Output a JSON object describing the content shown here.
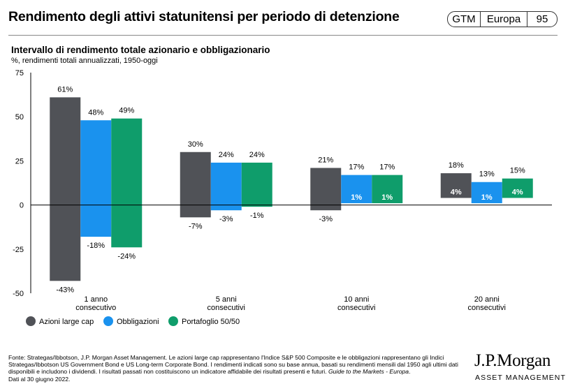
{
  "header": {
    "title": "Rendimento degli attivi statunitensi per periodo di detenzione",
    "badge": {
      "left": "GTM",
      "middle": "Europa",
      "right": "95"
    }
  },
  "chart_data": {
    "type": "bar",
    "title": "Intervallo di rendimento totale azionario e obbligazionario",
    "subtitle": "%, rendimenti totali annualizzati, 1950-oggi",
    "ylim": [
      -50,
      75
    ],
    "yticks": [
      75,
      50,
      25,
      0,
      -25,
      -50
    ],
    "categories": [
      [
        "1 anno",
        "consecutivo"
      ],
      [
        "5 anni",
        "consecutivi"
      ],
      [
        "10 anni",
        "consecutivi"
      ],
      [
        "20 anni",
        "consecutivi"
      ]
    ],
    "series": [
      {
        "name": "Azioni large cap",
        "color": "#505257",
        "max": [
          61,
          30,
          21,
          18
        ],
        "min": [
          -43,
          -7,
          -3,
          4
        ],
        "max_labels": [
          "61%",
          "30%",
          "21%",
          "18%"
        ],
        "min_labels": [
          "-43%",
          "-7%",
          "-3%",
          "4%"
        ]
      },
      {
        "name": "Obbligazioni",
        "color": "#1a92ee",
        "max": [
          48,
          24,
          17,
          13
        ],
        "min": [
          -18,
          -3,
          1,
          1
        ],
        "max_labels": [
          "48%",
          "24%",
          "17%",
          "13%"
        ],
        "min_labels": [
          "-18%",
          "-3%",
          "1%",
          "1%"
        ]
      },
      {
        "name": "Portafoglio 50/50",
        "color": "#0f9d6b",
        "max": [
          49,
          24,
          17,
          15
        ],
        "min": [
          -24,
          -1,
          1,
          4
        ],
        "max_labels": [
          "49%",
          "24%",
          "17%",
          "15%"
        ],
        "min_labels": [
          "-24%",
          "-1%",
          "1%",
          "4%"
        ]
      }
    ],
    "legend": "bottom-left",
    "grid": false
  },
  "footnote": {
    "text": "Fonte: Strategas/Ibbotson, J.P. Morgan Asset Management. Le azioni large cap rappresentano l'Indice S&P 500 Composite e le obbligazioni rappresentano gli Indici Strategas/Ibbotson US Government Bond e US Long-term Corporate Bond. I rendimenti indicati sono su base annua, basati su rendimenti mensili dal 1950 agli ultimi dati disponibili e includono i dividendi. I risultati passati non costituiscono un indicatore affidabile dei risultati presenti e futuri. ",
    "guide": "Guide to the Markets - Europa",
    "guide_end": ".",
    "date": "Dati al 30 giugno 2022."
  },
  "logo": {
    "main": "J.P.Morgan",
    "sub": "ASSET MANAGEMENT"
  }
}
